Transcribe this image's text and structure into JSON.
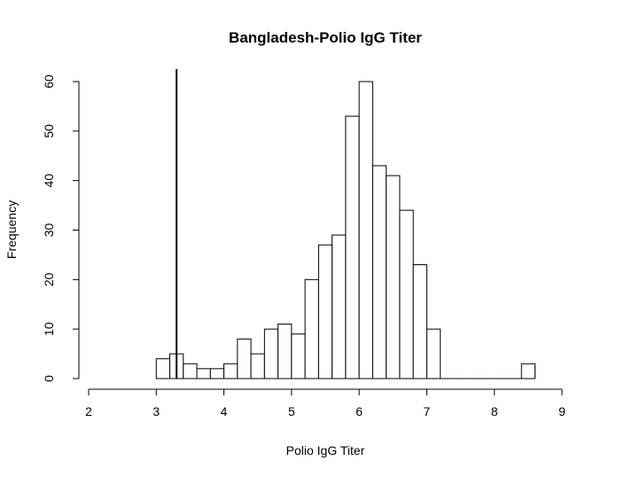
{
  "chart_data": {
    "type": "bar",
    "title": "Bangladesh-Polio IgG Titer",
    "xlabel": "Polio IgG Titer",
    "ylabel": "Frequency",
    "xlim": [
      2,
      9
    ],
    "ylim": [
      0,
      60
    ],
    "x_ticks": [
      "2",
      "3",
      "4",
      "5",
      "6",
      "7",
      "8",
      "9"
    ],
    "y_ticks": [
      "0",
      "10",
      "20",
      "30",
      "40",
      "50",
      "60"
    ],
    "bin_width": 0.2,
    "bins": [
      {
        "start": 3.0,
        "value": 4
      },
      {
        "start": 3.2,
        "value": 5
      },
      {
        "start": 3.4,
        "value": 3
      },
      {
        "start": 3.6,
        "value": 2
      },
      {
        "start": 3.8,
        "value": 2
      },
      {
        "start": 4.0,
        "value": 3
      },
      {
        "start": 4.2,
        "value": 8
      },
      {
        "start": 4.4,
        "value": 5
      },
      {
        "start": 4.6,
        "value": 10
      },
      {
        "start": 4.8,
        "value": 11
      },
      {
        "start": 5.0,
        "value": 9
      },
      {
        "start": 5.2,
        "value": 20
      },
      {
        "start": 5.4,
        "value": 27
      },
      {
        "start": 5.6,
        "value": 29
      },
      {
        "start": 5.8,
        "value": 53
      },
      {
        "start": 6.0,
        "value": 60
      },
      {
        "start": 6.2,
        "value": 43
      },
      {
        "start": 6.4,
        "value": 41
      },
      {
        "start": 6.6,
        "value": 34
      },
      {
        "start": 6.8,
        "value": 23
      },
      {
        "start": 7.0,
        "value": 10
      },
      {
        "start": 7.2,
        "value": 0
      },
      {
        "start": 7.4,
        "value": 0
      },
      {
        "start": 7.6,
        "value": 0
      },
      {
        "start": 7.8,
        "value": 0
      },
      {
        "start": 8.0,
        "value": 0
      },
      {
        "start": 8.2,
        "value": 0
      },
      {
        "start": 8.4,
        "value": 3
      }
    ],
    "reference_line": {
      "x": 3.3
    },
    "grid": false,
    "legend": "none"
  }
}
